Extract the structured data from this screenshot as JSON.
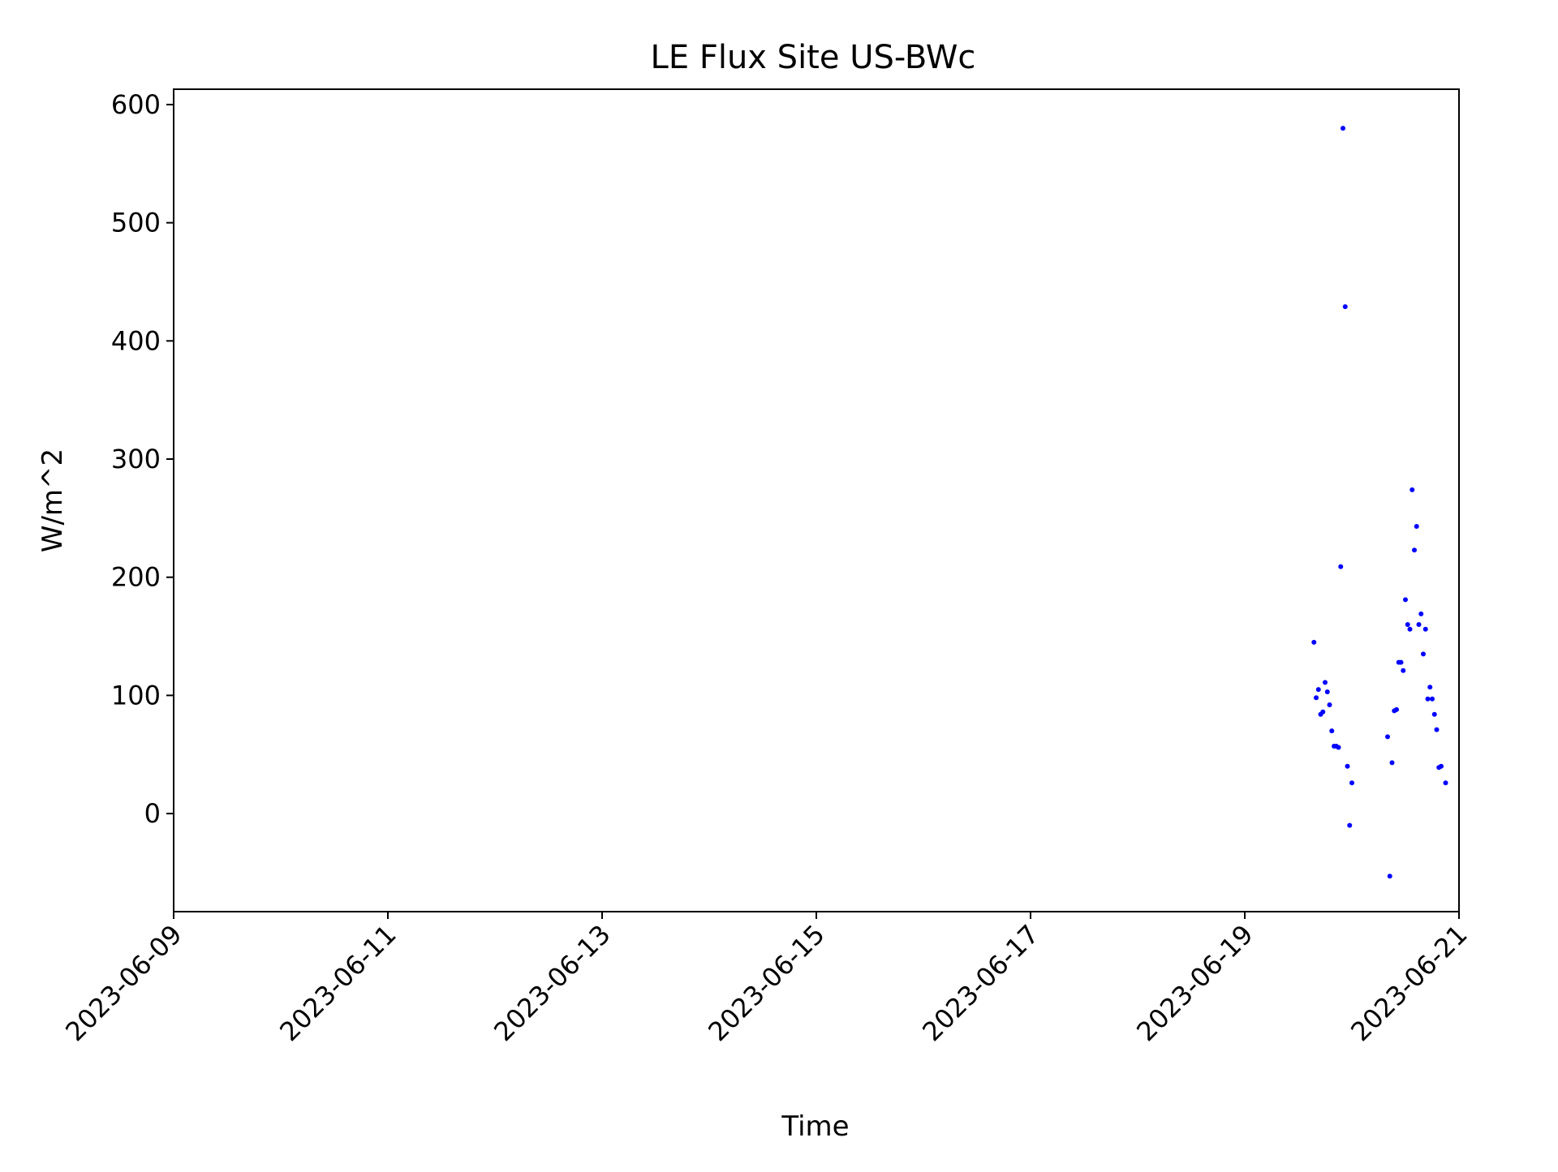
{
  "chart_data": {
    "type": "scatter",
    "title": "LE Flux Site US-BWc",
    "xlabel": "Time",
    "ylabel": "W/m^2",
    "xlim": [
      "2023-06-09 00:00",
      "2023-06-21 00:00"
    ],
    "ylim": [
      -83,
      613
    ],
    "x_ticks": [
      "2023-06-09",
      "2023-06-11",
      "2023-06-13",
      "2023-06-15",
      "2023-06-17",
      "2023-06-19",
      "2023-06-21"
    ],
    "y_ticks": [
      0,
      100,
      200,
      300,
      400,
      500,
      600
    ],
    "grid": false,
    "marker_color": "#0000ff",
    "points": [
      {
        "x": "2023-06-19 15:30",
        "y": 145
      },
      {
        "x": "2023-06-19 16:00",
        "y": 98
      },
      {
        "x": "2023-06-19 16:30",
        "y": 105
      },
      {
        "x": "2023-06-19 17:00",
        "y": 84
      },
      {
        "x": "2023-06-19 17:30",
        "y": 86
      },
      {
        "x": "2023-06-19 18:00",
        "y": 111
      },
      {
        "x": "2023-06-19 18:30",
        "y": 103
      },
      {
        "x": "2023-06-19 19:00",
        "y": 92
      },
      {
        "x": "2023-06-19 19:30",
        "y": 70
      },
      {
        "x": "2023-06-19 20:00",
        "y": 57
      },
      {
        "x": "2023-06-19 20:30",
        "y": 57
      },
      {
        "x": "2023-06-19 21:00",
        "y": 56
      },
      {
        "x": "2023-06-19 21:30",
        "y": 209
      },
      {
        "x": "2023-06-19 22:00",
        "y": 580
      },
      {
        "x": "2023-06-19 22:30",
        "y": 429
      },
      {
        "x": "2023-06-19 23:00",
        "y": 40
      },
      {
        "x": "2023-06-19 23:30",
        "y": -10
      },
      {
        "x": "2023-06-20 00:00",
        "y": 26
      },
      {
        "x": "2023-06-20 08:00",
        "y": 65
      },
      {
        "x": "2023-06-20 08:30",
        "y": -53
      },
      {
        "x": "2023-06-20 09:00",
        "y": 43
      },
      {
        "x": "2023-06-20 09:30",
        "y": 87
      },
      {
        "x": "2023-06-20 10:00",
        "y": 88
      },
      {
        "x": "2023-06-20 10:30",
        "y": 128
      },
      {
        "x": "2023-06-20 11:00",
        "y": 128
      },
      {
        "x": "2023-06-20 11:30",
        "y": 121
      },
      {
        "x": "2023-06-20 12:00",
        "y": 181
      },
      {
        "x": "2023-06-20 12:30",
        "y": 160
      },
      {
        "x": "2023-06-20 13:00",
        "y": 156
      },
      {
        "x": "2023-06-20 13:30",
        "y": 274
      },
      {
        "x": "2023-06-20 14:00",
        "y": 223
      },
      {
        "x": "2023-06-20 14:30",
        "y": 243
      },
      {
        "x": "2023-06-20 15:00",
        "y": 160
      },
      {
        "x": "2023-06-20 15:30",
        "y": 169
      },
      {
        "x": "2023-06-20 16:00",
        "y": 135
      },
      {
        "x": "2023-06-20 16:30",
        "y": 156
      },
      {
        "x": "2023-06-20 17:00",
        "y": 97
      },
      {
        "x": "2023-06-20 17:30",
        "y": 107
      },
      {
        "x": "2023-06-20 18:00",
        "y": 97
      },
      {
        "x": "2023-06-20 18:30",
        "y": 84
      },
      {
        "x": "2023-06-20 19:00",
        "y": 71
      },
      {
        "x": "2023-06-20 19:30",
        "y": 39
      },
      {
        "x": "2023-06-20 20:00",
        "y": 40
      },
      {
        "x": "2023-06-20 21:00",
        "y": 26
      }
    ]
  }
}
